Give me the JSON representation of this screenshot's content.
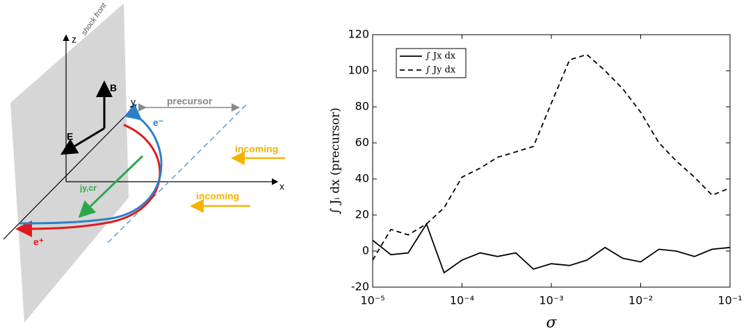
{
  "diagram": {
    "z_label": "z",
    "shock_label": "shock front",
    "b_label": "B",
    "e_label": "E",
    "y_label": "y",
    "x_label": "x",
    "precursor_label": "precursor",
    "electron_label": "e⁻",
    "positron_label": "e⁺",
    "current_label": "jy,cr",
    "incoming_labels": [
      "incoming",
      "incoming"
    ]
  },
  "chart_data": {
    "type": "line",
    "xlabel": "σ",
    "ylabel": "∫ Jᵢ dx (precursor)",
    "log_x": true,
    "x": [
      1e-05,
      1.6e-05,
      2.5e-05,
      4e-05,
      6.3e-05,
      0.0001,
      0.00016,
      0.00025,
      0.0004,
      0.00063,
      0.001,
      0.0016,
      0.0025,
      0.004,
      0.0063,
      0.01,
      0.016,
      0.025,
      0.04,
      0.063,
      0.1
    ],
    "series": [
      {
        "name": "∫ Jx dx",
        "color": "#000000",
        "dash": "solid",
        "values": [
          6,
          -2,
          -1,
          15,
          -12,
          -5,
          -1,
          -3,
          -1,
          -10,
          -7,
          -8,
          -5,
          2,
          -4,
          -6,
          1,
          0,
          -3,
          1,
          2
        ]
      },
      {
        "name": "∫ Jy dx",
        "color": "#000000",
        "dash": "dashed",
        "values": [
          -5,
          12,
          9,
          15,
          24,
          41,
          46,
          52,
          55,
          58,
          82,
          106,
          109,
          100,
          90,
          77,
          60,
          50,
          41,
          31,
          35
        ]
      }
    ],
    "xlim": [
      1e-05,
      0.1
    ],
    "ylim": [
      -20,
      120
    ],
    "xticks": [
      {
        "value": 1e-05,
        "label": "10⁻⁵"
      },
      {
        "value": 0.0001,
        "label": "10⁻⁴"
      },
      {
        "value": 0.001,
        "label": "10⁻³"
      },
      {
        "value": 0.01,
        "label": "10⁻²"
      },
      {
        "value": 0.1,
        "label": "10⁻¹"
      }
    ],
    "yticks": [
      -20,
      0,
      20,
      40,
      60,
      80,
      100,
      120
    ],
    "legend": "upper left"
  }
}
